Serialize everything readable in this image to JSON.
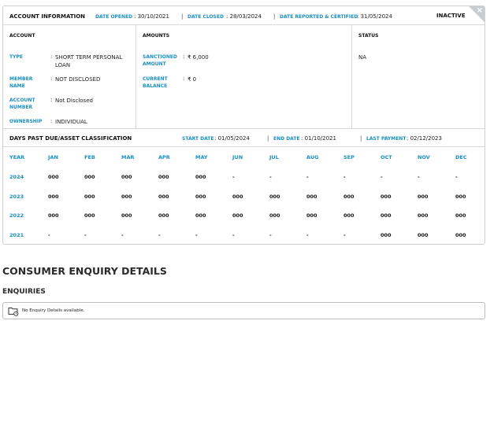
{
  "account_info": {
    "title": "ACCOUNT INFORMATION",
    "date_opened_label": "DATE OPENED",
    "date_opened": "30/10/2021",
    "date_closed_label": "DATE CLOSED",
    "date_closed": "28/03/2024",
    "date_reported_label": "DATE REPORTED & CERTIFIED",
    "date_reported": "31/05/2024",
    "status_badge": "INACTIVE",
    "close_glyph": "×"
  },
  "account": {
    "heading": "ACCOUNT",
    "type_label": "TYPE",
    "type_value_line1": "SHORT TERM PERSONAL",
    "type_value_line2": "LOAN",
    "member_label_line1": "MEMBER",
    "member_label_line2": "NAME",
    "member_value": "NOT DISCLOSED",
    "number_label_line1": "ACCOUNT",
    "number_label_line2": "NUMBER",
    "number_value": "Not Disclosed",
    "ownership_label": "OWNERSHIP",
    "ownership_value": "INDIVIDUAL"
  },
  "amounts": {
    "heading": "AMOUNTS",
    "sanctioned_label_line1": "SANCTIONED",
    "sanctioned_label_line2": "AMOUNT",
    "sanctioned_value": "₹ 6,000",
    "balance_label_line1": "CURRENT",
    "balance_label_line2": "BALANCE",
    "balance_value": "₹ 0"
  },
  "status": {
    "heading": "STATUS",
    "value": "NA"
  },
  "dpd": {
    "title": "DAYS PAST DUE/ASSET CLASSIFICATION",
    "start_label": "START DATE",
    "start_value": "01/05/2024",
    "end_label": "END DATE",
    "end_value": "01/10/2021",
    "last_label": "LAST PAYMENT",
    "last_value": "02/12/2023",
    "columns": [
      "YEAR",
      "JAN",
      "FEB",
      "MAR",
      "APR",
      "MAY",
      "JUN",
      "JUL",
      "AUG",
      "SEP",
      "OCT",
      "NOV",
      "DEC"
    ],
    "rows": [
      {
        "year": "2024",
        "values": [
          "000",
          "000",
          "000",
          "000",
          "000",
          "-",
          "-",
          "-",
          "-",
          "-",
          "-",
          "-"
        ]
      },
      {
        "year": "2023",
        "values": [
          "000",
          "000",
          "000",
          "000",
          "000",
          "000",
          "000",
          "000",
          "000",
          "000",
          "000",
          "000"
        ]
      },
      {
        "year": "2022",
        "values": [
          "000",
          "000",
          "000",
          "000",
          "000",
          "000",
          "000",
          "000",
          "000",
          "000",
          "000",
          "000"
        ]
      },
      {
        "year": "2021",
        "values": [
          "-",
          "-",
          "-",
          "-",
          "-",
          "-",
          "-",
          "-",
          "-",
          "000",
          "000",
          "000"
        ]
      }
    ]
  },
  "consumer_enquiry": {
    "title": "CONSUMER ENQUIRY DETAILS",
    "subtitle": "ENQUIRIES",
    "empty_text": "No Enquiry Details available.",
    "icon": "folder-clock-icon"
  }
}
